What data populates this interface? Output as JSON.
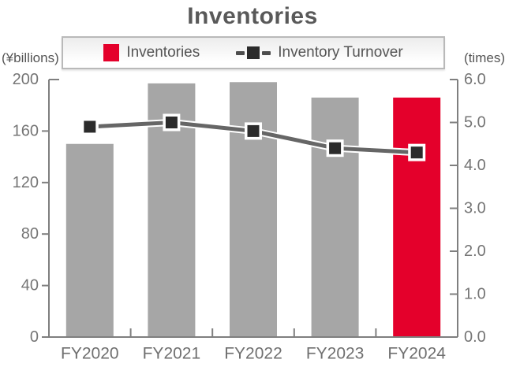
{
  "title": "Inventories",
  "legend": {
    "items": [
      {
        "label": "Inventories",
        "type": "bar"
      },
      {
        "label": "Inventory Turnover",
        "type": "line"
      }
    ]
  },
  "colors": {
    "bar_gray": "#a6a6a6",
    "bar_red": "#e4002b",
    "line_gray": "#666666",
    "line_casing": "#ffffff",
    "marker_dark": "#2b2b2b",
    "marker_border": "#ffffff",
    "axis": "#7f7f7f",
    "title_text": "#595959",
    "tick_text": "#757575"
  },
  "chart_data": {
    "type": "bar-line-combo",
    "title": "Inventories",
    "categories": [
      "FY2020",
      "FY2021",
      "FY2022",
      "FY2023",
      "FY2024"
    ],
    "series": [
      {
        "name": "Inventories",
        "type": "bar",
        "axis": "left",
        "values": [
          150,
          197,
          198,
          186,
          186
        ],
        "bar_colors": [
          "#a6a6a6",
          "#a6a6a6",
          "#a6a6a6",
          "#a6a6a6",
          "#e4002b"
        ]
      },
      {
        "name": "Inventory Turnover",
        "type": "line",
        "axis": "right",
        "values": [
          4.9,
          5.0,
          4.8,
          4.4,
          4.3
        ],
        "line_color": "#666666",
        "marker_color": "#2b2b2b"
      }
    ],
    "left_axis": {
      "label": "(¥billions)",
      "min": 0,
      "max": 200,
      "ticks": [
        0,
        40,
        80,
        120,
        160,
        200
      ]
    },
    "right_axis": {
      "label": "(times)",
      "min": 0,
      "max": 6,
      "ticks": [
        0,
        1,
        2,
        3,
        4,
        5,
        6
      ],
      "decimals": 1
    },
    "grid": false,
    "legend_position": "top"
  }
}
